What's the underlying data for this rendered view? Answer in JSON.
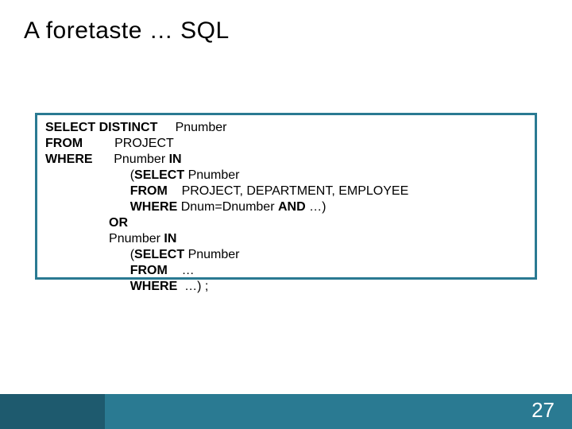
{
  "slide": {
    "title": "A foretaste … SQL",
    "page_number": "27",
    "colors": {
      "border": "#2a7a92",
      "footer_bar": "#2a7a92",
      "footer_accent": "#1e5a6e",
      "title_color": "#000000",
      "code_color": "#000000",
      "page_num_color": "#ffffff",
      "background": "#ffffff"
    },
    "typography": {
      "title_fontsize": 30,
      "code_fontsize": 16,
      "page_num_fontsize": 26,
      "font_family": "Arial"
    },
    "code": {
      "lines": [
        {
          "kw": "SELECT DISTINCT",
          "rest": "     Pnumber"
        },
        {
          "kw": "FROM",
          "rest": "         PROJECT"
        },
        {
          "kw": "WHERE",
          "rest": "      Pnumber ",
          "kw2": "IN",
          "rest2": ""
        },
        {
          "kw": "",
          "rest": "                        (",
          "kw2": "SELECT",
          "rest2": " Pnumber"
        },
        {
          "kw": "",
          "rest": "                        ",
          "kw2": "FROM",
          "rest2": "    PROJECT, DEPARTMENT, EMPLOYEE"
        },
        {
          "kw": "",
          "rest": "                        ",
          "kw2": "WHERE",
          "rest2": " Dnum=Dnumber ",
          "kw3": "AND",
          "rest3": " …)"
        },
        {
          "kw": "",
          "rest": "                  ",
          "kw2": "OR",
          "rest2": ""
        },
        {
          "kw": "",
          "rest": "                  Pnumber ",
          "kw2": "IN",
          "rest2": ""
        },
        {
          "kw": "",
          "rest": "                        (",
          "kw2": "SELECT",
          "rest2": " Pnumber"
        },
        {
          "kw": "",
          "rest": "                        ",
          "kw2": "FROM",
          "rest2": "    …"
        },
        {
          "kw": "",
          "rest": "                        ",
          "kw2": "WHERE",
          "rest2": "  …) ;"
        }
      ]
    }
  }
}
